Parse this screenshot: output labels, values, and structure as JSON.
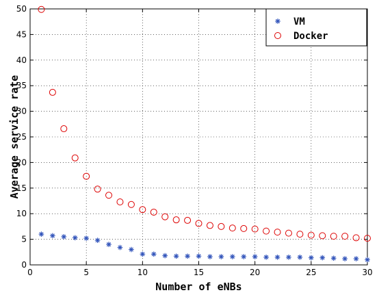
{
  "chart_data": {
    "type": "scatter",
    "xlabel": "Number of eNBs",
    "ylabel": "Average service rate",
    "xlim": [
      0,
      30
    ],
    "ylim": [
      0,
      50
    ],
    "xticks": [
      "0",
      "5",
      "10",
      "15",
      "20",
      "25",
      "30"
    ],
    "yticks": [
      "0",
      "5",
      "10",
      "15",
      "20",
      "25",
      "30",
      "35",
      "40",
      "45",
      "50"
    ],
    "grid": true,
    "legend_position": "top-right",
    "x": [
      1,
      2,
      3,
      4,
      5,
      6,
      7,
      8,
      9,
      10,
      11,
      12,
      13,
      14,
      15,
      16,
      17,
      18,
      19,
      20,
      21,
      22,
      23,
      24,
      25,
      26,
      27,
      28,
      29,
      30
    ],
    "series": [
      {
        "name": "VM",
        "marker": "asterisk",
        "color": "#3355bb",
        "values": [
          6.0,
          5.7,
          5.5,
          5.3,
          5.2,
          4.8,
          4.0,
          3.4,
          3.0,
          2.1,
          2.1,
          1.8,
          1.7,
          1.7,
          1.7,
          1.6,
          1.6,
          1.6,
          1.6,
          1.6,
          1.5,
          1.5,
          1.5,
          1.5,
          1.4,
          1.4,
          1.3,
          1.2,
          1.2,
          1.0
        ]
      },
      {
        "name": "Docker",
        "marker": "circle",
        "color": "#dd0000",
        "values": [
          49.9,
          33.7,
          26.6,
          20.9,
          17.3,
          14.8,
          13.6,
          12.3,
          11.8,
          10.8,
          10.3,
          9.4,
          8.8,
          8.7,
          8.1,
          7.7,
          7.5,
          7.2,
          7.1,
          7.0,
          6.6,
          6.4,
          6.2,
          6.0,
          5.8,
          5.7,
          5.6,
          5.6,
          5.3,
          5.2
        ]
      }
    ]
  }
}
